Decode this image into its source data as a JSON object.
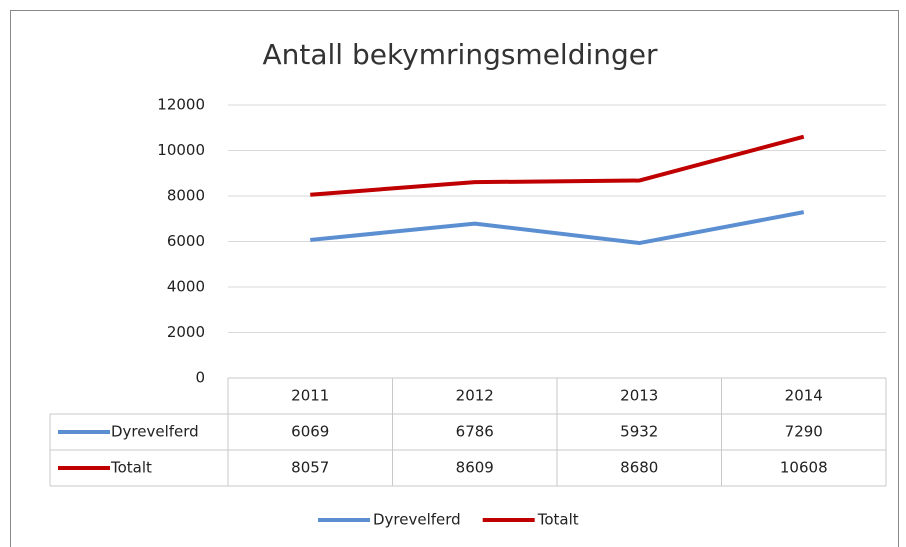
{
  "chart_data": {
    "type": "line",
    "title": "Antall bekymringsmeldinger",
    "categories": [
      "2011",
      "2012",
      "2013",
      "2014"
    ],
    "series": [
      {
        "name": "Dyrevelferd",
        "color": "#5b8fd1",
        "values": [
          6069,
          6786,
          5932,
          7290
        ]
      },
      {
        "name": "Totalt",
        "color": "#c00000",
        "values": [
          8057,
          8609,
          8680,
          10608
        ]
      }
    ],
    "ylim": [
      0,
      12000
    ],
    "yticks": [
      0,
      2000,
      4000,
      6000,
      8000,
      10000,
      12000
    ],
    "grid": true,
    "legend": "bottom",
    "data_table": true
  }
}
